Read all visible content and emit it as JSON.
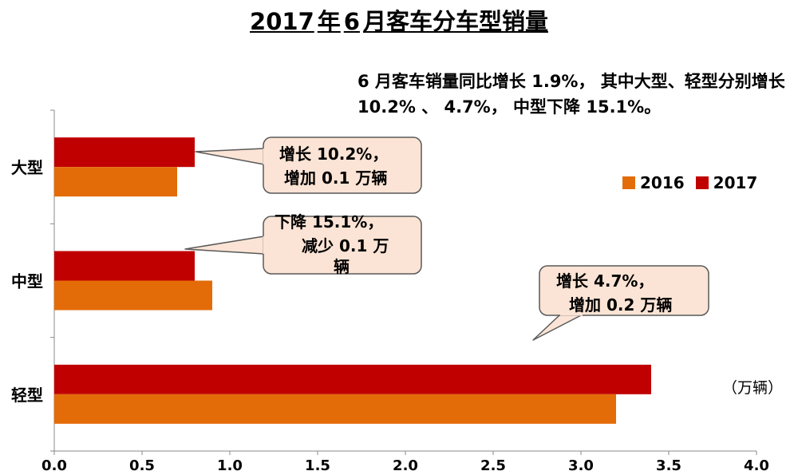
{
  "title": {
    "year": "2017",
    "mid": "年",
    "month": "6",
    "rest": "月客车分车型销量"
  },
  "summary": "6 月客车销量同比增长 1.9%， 其中大型、轻型分别增长 10.2% 、 4.7%， 中型下降 15.1%。",
  "unit_label": "（万辆）",
  "colors": {
    "2016": "#E36C09",
    "2017": "#C00000",
    "callout_fill": "#FBE4D5",
    "callout_stroke": "#595959"
  },
  "chart_data": {
    "type": "bar",
    "orientation": "horizontal",
    "categories": [
      "大型",
      "中型",
      "轻型"
    ],
    "series": [
      {
        "name": "2016",
        "values": [
          0.7,
          0.9,
          3.2
        ]
      },
      {
        "name": "2017",
        "values": [
          0.8,
          0.8,
          3.4
        ]
      }
    ],
    "xlim": [
      0,
      4.0
    ],
    "x_ticks": [
      "0.0",
      "0.5",
      "1.0",
      "1.5",
      "2.0",
      "2.5",
      "3.0",
      "3.5",
      "4.0"
    ],
    "grid": false,
    "legend_position": "right"
  },
  "callouts": [
    {
      "line1": "增长 10.2%，",
      "line2": "增加 0.1 万辆"
    },
    {
      "line1": "下降 15.1%，",
      "line2": "减少 0.1 万",
      "line3": "辆"
    },
    {
      "line1": "增长 4.7%，",
      "line2": "增加 0.2 万辆"
    }
  ]
}
